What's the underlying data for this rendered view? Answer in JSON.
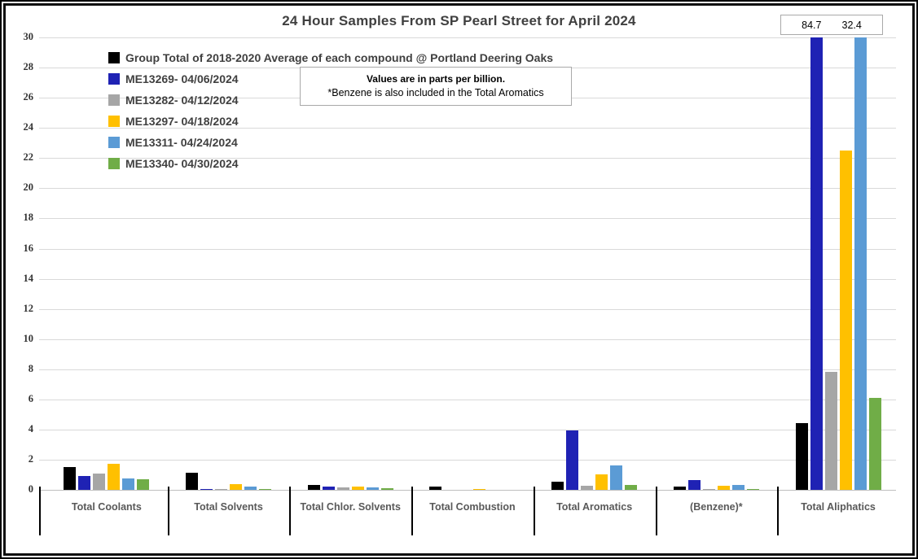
{
  "title": "24 Hour Samples From SP Pearl Street for April 2024",
  "note_box": {
    "line1": "Values are in parts per billion.",
    "line2": "*Benzene is also included in the Total Aromatics"
  },
  "callout_box": {
    "values": [
      "84.7",
      "32.4"
    ],
    "note": "off-scale totals for ME13269 and ME13311 Total Aliphatics bars"
  },
  "colors": {
    "frame": "#000000",
    "title_text": "#404040",
    "category_text": "#595959",
    "gridline": "#d9d9d9",
    "box_border": "#a9a9a9",
    "series_black": "#000000",
    "series_dark_blue": "#1f22b4",
    "series_gray": "#a6a6a6",
    "series_yellow": "#ffc000",
    "series_light_blue": "#5b9bd5",
    "series_green": "#70ad47"
  },
  "chart_data": {
    "type": "bar",
    "title": "24 Hour Samples From SP Pearl Street for April 2024",
    "xlabel": "",
    "ylabel": "",
    "ylim": [
      0,
      30
    ],
    "ytick_step": 2,
    "grid": true,
    "legend_position": "top-left",
    "clip_max": 30,
    "categories": [
      "Total Coolants",
      "Total Solvents",
      "Total Chlor. Solvents",
      "Total Combustion",
      "Total Aromatics",
      "(Benzene)*",
      "Total Aliphatics"
    ],
    "series": [
      {
        "name": "Group Total of 2018-2020 Average of each compound @ Portland Deering Oaks",
        "color": "#000000",
        "values": [
          1.5,
          1.15,
          0.33,
          0.22,
          0.55,
          0.2,
          4.45
        ]
      },
      {
        "name": "ME13269- 04/06/2024",
        "color": "#1f22b4",
        "values": [
          0.9,
          0.07,
          0.2,
          0,
          3.95,
          0.65,
          84.7
        ]
      },
      {
        "name": "ME13282- 04/12/2024",
        "color": "#a6a6a6",
        "values": [
          1.1,
          0.08,
          0.15,
          0,
          0.25,
          0.08,
          7.8
        ]
      },
      {
        "name": "ME13297- 04/18/2024",
        "color": "#ffc000",
        "values": [
          1.75,
          0.4,
          0.2,
          0.05,
          1.0,
          0.25,
          22.5
        ]
      },
      {
        "name": "ME13311- 04/24/2024",
        "color": "#5b9bd5",
        "values": [
          0.75,
          0.2,
          0.15,
          0,
          1.6,
          0.35,
          32.4
        ]
      },
      {
        "name": "ME13340- 04/30/2024",
        "color": "#70ad47",
        "values": [
          0.7,
          0.07,
          0.13,
          0,
          0.3,
          0.05,
          6.1
        ]
      }
    ]
  }
}
